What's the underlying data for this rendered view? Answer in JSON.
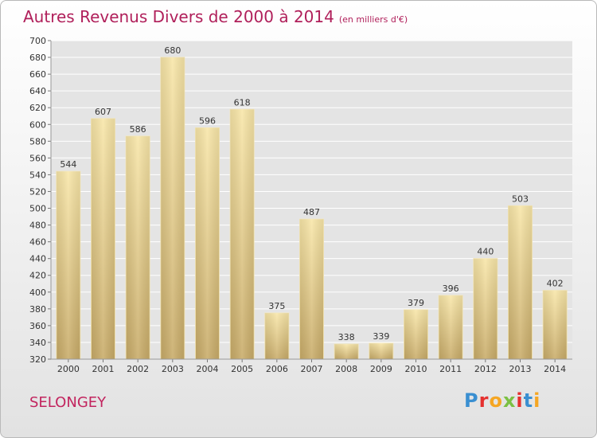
{
  "header": {
    "title": "Autres Revenus Divers de 2000 à 2014",
    "unit": "(en milliers d'€)"
  },
  "footer": {
    "city": "SELONGEY",
    "logo": {
      "letters": [
        "P",
        "r",
        "o",
        "x",
        "i",
        "t",
        "i"
      ],
      "colors": [
        "#3a8fd1",
        "#e5312f",
        "#f5a623",
        "#7bc043",
        "#e5312f",
        "#3a8fd1",
        "#f5a623"
      ]
    }
  },
  "colors": {
    "title": "#b01f5a",
    "bar_light": "#f7e3a2",
    "bar_dark": "#c9ad6a",
    "grid": "#ffffff"
  },
  "chart_data": {
    "type": "bar",
    "title": "Autres Revenus Divers de 2000 à 2014",
    "subtitle": "(en milliers d'€)",
    "xlabel": "",
    "ylabel": "",
    "categories": [
      "2000",
      "2001",
      "2002",
      "2003",
      "2004",
      "2005",
      "2006",
      "2007",
      "2008",
      "2009",
      "2010",
      "2011",
      "2012",
      "2013",
      "2014"
    ],
    "values": [
      544,
      607,
      586,
      680,
      596,
      618,
      375,
      487,
      338,
      339,
      379,
      396,
      440,
      503,
      402
    ],
    "ylim": [
      320,
      700
    ],
    "yticks": [
      320,
      340,
      360,
      380,
      400,
      420,
      440,
      460,
      480,
      500,
      520,
      540,
      560,
      580,
      600,
      620,
      640,
      660,
      680,
      700
    ],
    "grid": true,
    "data_labels": true
  }
}
